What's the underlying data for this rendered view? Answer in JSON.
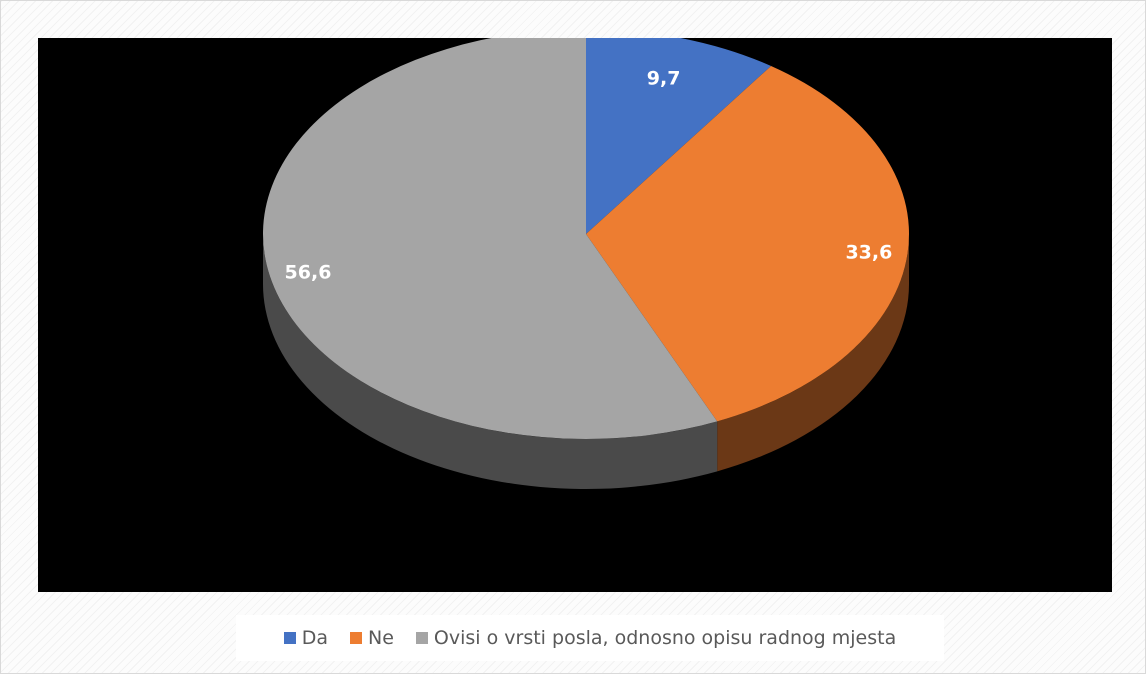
{
  "chart_data": {
    "type": "pie",
    "title": "",
    "categories": [
      "Da",
      "Ne",
      "Ovisi o vrsti posla, odnosno opisu radnog mjesta"
    ],
    "values": [
      9.7,
      33.6,
      56.6
    ],
    "value_labels": [
      "9,7",
      "33,6",
      "56,6"
    ],
    "colors": [
      "#4472C4",
      "#ED7D31",
      "#A5A5A5"
    ],
    "style": "3d",
    "legend_position": "bottom",
    "start_angle_deg": 0,
    "direction": "clockwise"
  },
  "legend": {
    "items": [
      {
        "label": "Da",
        "color": "#4472C4"
      },
      {
        "label": "Ne",
        "color": "#ED7D31"
      },
      {
        "label": "Ovisi o vrsti posla, odnosno opisu radnog mjesta",
        "color": "#A5A5A5"
      }
    ]
  },
  "plot": {
    "background": "#000000"
  }
}
